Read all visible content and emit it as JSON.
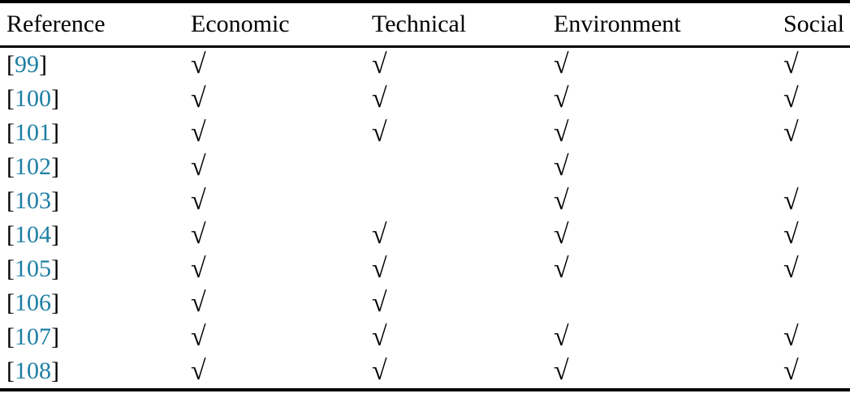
{
  "table": {
    "check_symbol": "√",
    "columns": [
      {
        "key": "reference",
        "label": "Reference"
      },
      {
        "key": "economic",
        "label": "Economic"
      },
      {
        "key": "technical",
        "label": "Technical"
      },
      {
        "key": "environment",
        "label": "Environment"
      },
      {
        "key": "social",
        "label": "Social"
      }
    ],
    "rows": [
      {
        "reference": "99",
        "economic": true,
        "technical": true,
        "environment": true,
        "social": true
      },
      {
        "reference": "100",
        "economic": true,
        "technical": true,
        "environment": true,
        "social": true
      },
      {
        "reference": "101",
        "economic": true,
        "technical": true,
        "environment": true,
        "social": true
      },
      {
        "reference": "102",
        "economic": true,
        "technical": false,
        "environment": true,
        "social": false
      },
      {
        "reference": "103",
        "economic": true,
        "technical": false,
        "environment": true,
        "social": true
      },
      {
        "reference": "104",
        "economic": true,
        "technical": true,
        "environment": true,
        "social": true
      },
      {
        "reference": "105",
        "economic": true,
        "technical": true,
        "environment": true,
        "social": true
      },
      {
        "reference": "106",
        "economic": true,
        "technical": true,
        "environment": false,
        "social": false
      },
      {
        "reference": "107",
        "economic": true,
        "technical": true,
        "environment": true,
        "social": true
      },
      {
        "reference": "108",
        "economic": true,
        "technical": true,
        "environment": true,
        "social": true
      }
    ],
    "colors": {
      "citation_link": "#1e7fa5",
      "text": "#000000",
      "rule": "#000000",
      "background": "#ffffff"
    }
  }
}
